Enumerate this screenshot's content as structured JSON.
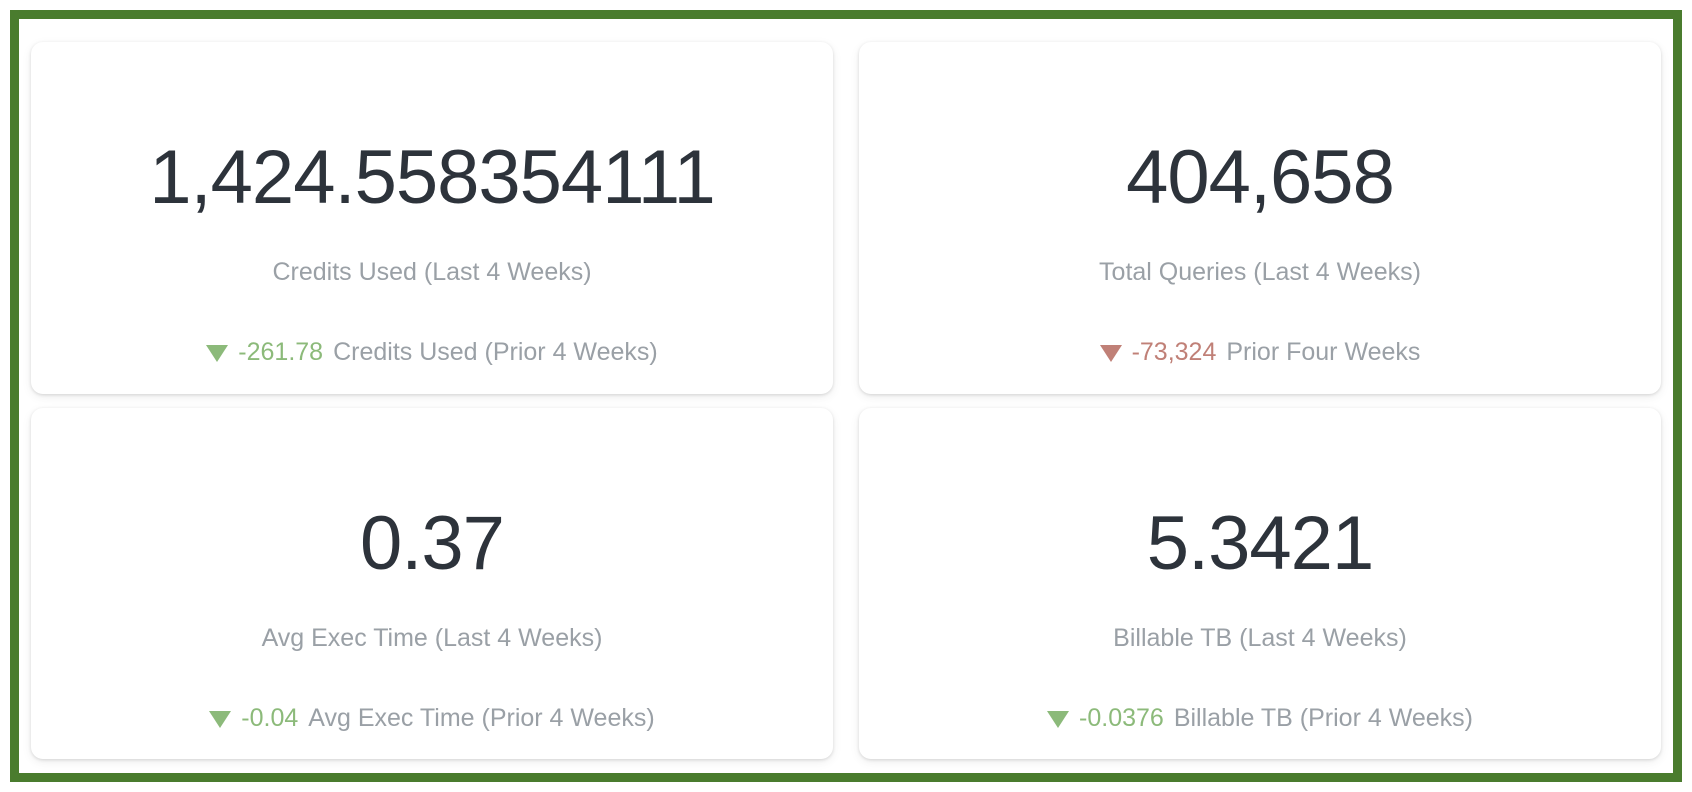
{
  "frame": {
    "border_color": "#4a7c2e",
    "background_color": "#ffffff"
  },
  "colors": {
    "value_text": "#2d333b",
    "label_text": "#9aa0a6",
    "positive_delta": "#8cba7a",
    "negative_delta": "#c08077"
  },
  "cards": [
    {
      "value": "1,424.558354111",
      "label": "Credits Used (Last 4 Weeks)",
      "trend_icon": "triangle-down-icon",
      "delta": "-261.78",
      "delta_label": "Credits Used (Prior 4 Weeks)",
      "trend_color": "#8cba7a"
    },
    {
      "value": "404,658",
      "label": "Total Queries (Last 4 Weeks)",
      "trend_icon": "triangle-down-icon",
      "delta": "-73,324",
      "delta_label": "Prior Four Weeks",
      "trend_color": "#c08077"
    },
    {
      "value": "0.37",
      "label": "Avg Exec Time (Last 4 Weeks)",
      "trend_icon": "triangle-down-icon",
      "delta": "-0.04",
      "delta_label": "Avg Exec Time (Prior 4 Weeks)",
      "trend_color": "#8cba7a"
    },
    {
      "value": "5.3421",
      "label": "Billable TB (Last 4 Weeks)",
      "trend_icon": "triangle-down-icon",
      "delta": "-0.0376",
      "delta_label": "Billable TB (Prior 4 Weeks)",
      "trend_color": "#8cba7a"
    }
  ],
  "chart_data": {
    "type": "table",
    "title": "KPI scorecards (2x2 dashboard tiles)",
    "metrics": [
      {
        "name": "Credits Used (Last 4 Weeks)",
        "value": 1424.558354111,
        "delta_vs_prior_4_weeks": -261.78,
        "delta_direction": "down",
        "delta_sentiment": "positive",
        "comparison_label": "Credits Used (Prior 4 Weeks)"
      },
      {
        "name": "Total Queries (Last 4 Weeks)",
        "value": 404658,
        "delta_vs_prior_4_weeks": -73324,
        "delta_direction": "down",
        "delta_sentiment": "negative",
        "comparison_label": "Prior Four Weeks"
      },
      {
        "name": "Avg Exec Time (Last 4 Weeks)",
        "value": 0.37,
        "delta_vs_prior_4_weeks": -0.04,
        "delta_direction": "down",
        "delta_sentiment": "positive",
        "comparison_label": "Avg Exec Time (Prior 4 Weeks)"
      },
      {
        "name": "Billable TB (Last 4 Weeks)",
        "value": 5.3421,
        "delta_vs_prior_4_weeks": -0.0376,
        "delta_direction": "down",
        "delta_sentiment": "positive",
        "comparison_label": "Billable TB (Prior 4 Weeks)"
      }
    ]
  }
}
